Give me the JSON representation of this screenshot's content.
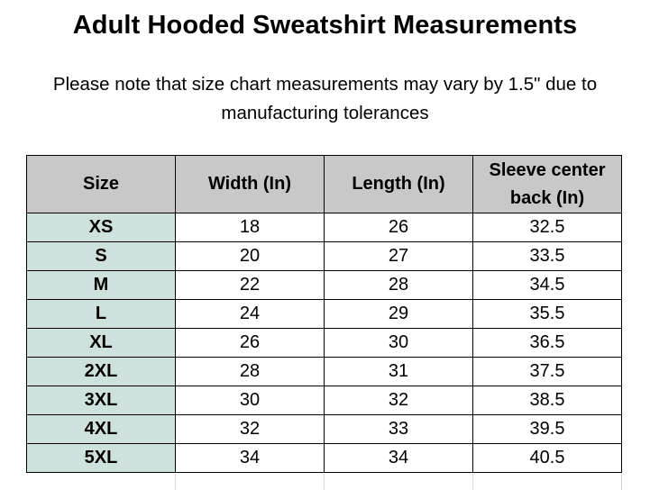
{
  "title": "Adult Hooded Sweatshirt Measurements",
  "note": {
    "line1": "Please note that size chart measurements may vary by 1.5\" due to",
    "line2": "manufacturing tolerances"
  },
  "table": {
    "headers": [
      "Size",
      "Width (In)",
      "Length (In)",
      "Sleeve center back (In)"
    ],
    "header_sleeve_line1": "Sleeve center",
    "header_sleeve_line2": "back (In)",
    "rows": [
      [
        "XS",
        "18",
        "26",
        "32.5"
      ],
      [
        "S",
        "20",
        "27",
        "33.5"
      ],
      [
        "M",
        "22",
        "28",
        "34.5"
      ],
      [
        "L",
        "24",
        "29",
        "35.5"
      ],
      [
        "XL",
        "26",
        "30",
        "36.5"
      ],
      [
        "2XL",
        "28",
        "31",
        "37.5"
      ],
      [
        "3XL",
        "30",
        "32",
        "38.5"
      ],
      [
        "4XL",
        "32",
        "33",
        "39.5"
      ],
      [
        "5XL",
        "34",
        "34",
        "40.5"
      ]
    ]
  },
  "colors": {
    "header_bg": "#c8c8c8",
    "size_col_bg": "#cfe1dc",
    "border": "#000000"
  }
}
